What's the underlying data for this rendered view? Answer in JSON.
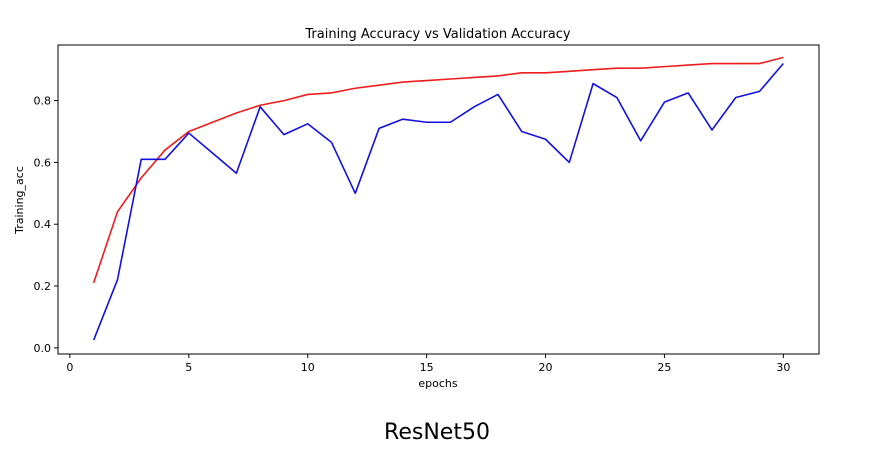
{
  "caption": "ResNet50",
  "chart_data": {
    "type": "line",
    "title": "Training Accuracy vs Validation Accuracy",
    "xlabel": "epochs",
    "ylabel": "Training_acc",
    "xlim": [
      -0.5,
      31.5
    ],
    "ylim": [
      -0.02,
      0.98
    ],
    "xticks": [
      0,
      5,
      10,
      15,
      20,
      25,
      30
    ],
    "yticks": [
      0.0,
      0.2,
      0.4,
      0.6,
      0.8
    ],
    "grid": false,
    "legend": "none",
    "x": [
      1,
      2,
      3,
      4,
      5,
      6,
      7,
      8,
      9,
      10,
      11,
      12,
      13,
      14,
      15,
      16,
      17,
      18,
      19,
      20,
      21,
      22,
      23,
      24,
      25,
      26,
      27,
      28,
      29,
      30
    ],
    "series": [
      {
        "color": "#ee1c1c",
        "values": [
          0.21,
          0.44,
          0.55,
          0.64,
          0.7,
          0.73,
          0.76,
          0.785,
          0.8,
          0.82,
          0.825,
          0.84,
          0.85,
          0.86,
          0.865,
          0.87,
          0.875,
          0.88,
          0.89,
          0.89,
          0.895,
          0.9,
          0.905,
          0.905,
          0.91,
          0.915,
          0.92,
          0.92,
          0.92,
          0.94
        ]
      },
      {
        "color": "#1212e0",
        "values": [
          0.025,
          0.22,
          0.61,
          0.61,
          0.695,
          0.63,
          0.565,
          0.78,
          0.69,
          0.725,
          0.665,
          0.5,
          0.71,
          0.74,
          0.73,
          0.73,
          0.78,
          0.82,
          0.7,
          0.675,
          0.6,
          0.855,
          0.81,
          0.67,
          0.795,
          0.825,
          0.705,
          0.81,
          0.83,
          0.92
        ]
      }
    ]
  }
}
